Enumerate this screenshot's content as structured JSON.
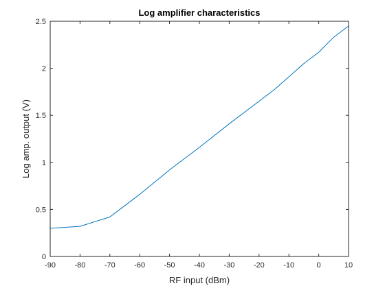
{
  "chart_data": {
    "type": "line",
    "title": "Log amplifier characteristics",
    "xlabel": "RF input (dBm)",
    "ylabel": "Log amp. output (V)",
    "xlim": [
      -90,
      10
    ],
    "ylim": [
      0,
      2.5
    ],
    "xticks": [
      -90,
      -80,
      -70,
      -60,
      -50,
      -40,
      -30,
      -20,
      -10,
      0,
      10
    ],
    "xtick_labels": [
      "-90",
      "-80",
      "-70",
      "-60",
      "-50",
      "-40",
      "-30",
      "-20",
      "-10",
      "0",
      "10"
    ],
    "yticks": [
      0,
      0.5,
      1,
      1.5,
      2,
      2.5
    ],
    "ytick_labels": [
      "0",
      "0.5",
      "1",
      "1.5",
      "2",
      "2.5"
    ],
    "grid": false,
    "series": [
      {
        "color": "#0072bd",
        "x": [
          -90,
          -80,
          -70,
          -60,
          -50,
          -40,
          -30,
          -20,
          -15,
          -10,
          -5,
          0,
          5,
          10
        ],
        "y": [
          0.3,
          0.32,
          0.42,
          0.66,
          0.92,
          1.16,
          1.41,
          1.65,
          1.77,
          1.91,
          2.05,
          2.17,
          2.33,
          2.45
        ]
      }
    ]
  }
}
